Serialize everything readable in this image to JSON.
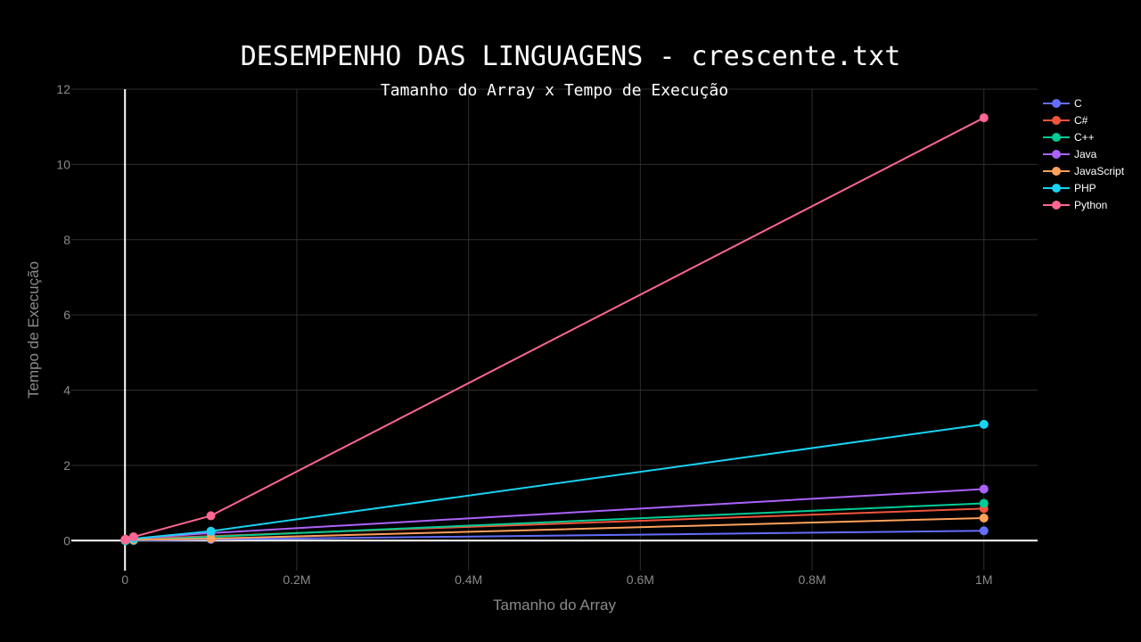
{
  "chart_data": {
    "type": "line",
    "title": "DESEMPENHO DAS LINGUAGENS - crescente.txt",
    "subtitle": "Tamanho do Array x Tempo de Execução",
    "xlabel": "Tamanho do Array",
    "ylabel": "Tempo de Execução",
    "xlim": [
      -62500,
      1062500
    ],
    "ylim": [
      -0.8,
      12
    ],
    "xticks": [
      0,
      200000,
      400000,
      600000,
      800000,
      1000000
    ],
    "xtick_labels": [
      "0",
      "0.2M",
      "0.4M",
      "0.6M",
      "0.8M",
      "1M"
    ],
    "yticks": [
      0,
      2,
      4,
      6,
      8,
      10,
      12
    ],
    "ytick_labels": [
      "0",
      "2",
      "4",
      "6",
      "8",
      "10",
      "12"
    ],
    "grid": true,
    "legend_position": "top-right",
    "x": [
      100,
      1000,
      10000,
      100000,
      1000000
    ],
    "series": [
      {
        "name": "C",
        "color": "#636efa",
        "values": [
          0.0,
          0.0,
          0.0,
          0.03,
          0.26
        ]
      },
      {
        "name": "C#",
        "color": "#EF553B",
        "values": [
          0.03,
          0.03,
          0.04,
          0.12,
          0.85
        ]
      },
      {
        "name": "C++",
        "color": "#00cc96",
        "values": [
          0.0,
          0.0,
          0.01,
          0.1,
          0.99
        ]
      },
      {
        "name": "Java",
        "color": "#ab63fa",
        "values": [
          0.02,
          0.03,
          0.05,
          0.2,
          1.37
        ]
      },
      {
        "name": "JavaScript",
        "color": "#FFA15A",
        "values": [
          0.02,
          0.02,
          0.02,
          0.05,
          0.6
        ]
      },
      {
        "name": "PHP",
        "color": "#19d3f3",
        "values": [
          0.01,
          0.02,
          0.05,
          0.25,
          3.09
        ]
      },
      {
        "name": "Python",
        "color": "#FF6692",
        "values": [
          0.02,
          0.03,
          0.1,
          0.66,
          11.24
        ]
      }
    ]
  }
}
